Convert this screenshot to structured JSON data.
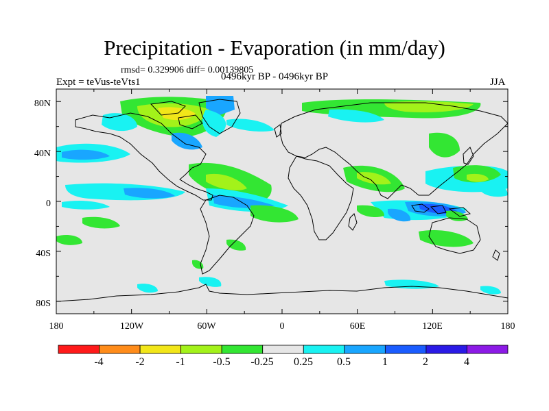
{
  "title": "Precipitation - Evaporation (in mm/day)",
  "stats": "rmsd= 0.329906 diff= 0.00139805",
  "experiment": "Expt = teVus-teVts1",
  "period": "0496kyr BP - 0496kyr BP",
  "season": "JJA",
  "map": {
    "projection": "cylindrical equidistant",
    "lon_range": [
      -180,
      180
    ],
    "lat_range": [
      -90,
      90
    ],
    "background_color": "#e6e6e6",
    "coastline_color": "#000000",
    "x_ticks": [
      "180",
      "120W",
      "60W",
      "0",
      "60E",
      "120E",
      "180"
    ],
    "y_ticks": [
      "80N",
      "40N",
      "0",
      "40S",
      "80S"
    ]
  },
  "colorbar": {
    "labels": [
      "-4",
      "-2",
      "-1",
      "-0.5",
      "-0.25",
      "0.25",
      "0.5",
      "1",
      "2",
      "4"
    ],
    "colors": [
      "#ff1a1a",
      "#ff8c1a",
      "#f2e619",
      "#a3f21a",
      "#33e633",
      "#e6e6e6",
      "#19f2f2",
      "#19a6ff",
      "#1a5cff",
      "#2a1ae6",
      "#8c1ae6"
    ]
  }
}
